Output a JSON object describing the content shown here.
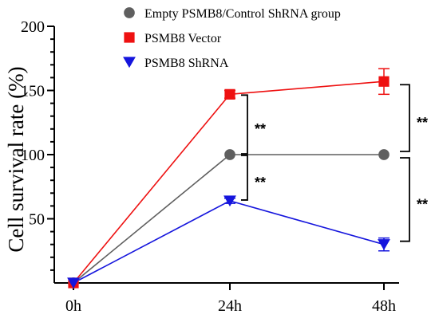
{
  "chart_data": {
    "type": "line",
    "ylabel": "Cell survival rate (%)",
    "xlabel": "",
    "x": [
      "0h",
      "24h",
      "48h"
    ],
    "ylim": [
      0,
      200
    ],
    "yticks": [
      50,
      100,
      150,
      200
    ],
    "yticks_labeled": [
      "50",
      "100",
      "150",
      "200"
    ],
    "grid": false,
    "legend_position": "top-right",
    "series": [
      {
        "name": "Empty PSMB8/Control ShRNA group",
        "color": "#5f5f5f",
        "marker": "circle",
        "values": [
          0,
          100,
          100
        ],
        "errors": [
          0,
          0,
          0
        ]
      },
      {
        "name": "PSMB8 Vector",
        "color": "#ee1111",
        "marker": "square",
        "values": [
          0,
          147,
          157
        ],
        "errors": [
          0,
          3,
          10
        ]
      },
      {
        "name": "PSMB8 ShRNA",
        "color": "#1515dd",
        "marker": "triangle-down",
        "values": [
          0,
          64,
          30
        ],
        "errors": [
          0,
          2,
          5
        ]
      }
    ],
    "significance": [
      {
        "x": "24h",
        "from": 147,
        "to": 100,
        "label": "**"
      },
      {
        "x": "24h",
        "from": 100,
        "to": 64,
        "label": "**"
      },
      {
        "x": "48h",
        "from": 157,
        "to": 100,
        "label": "**"
      },
      {
        "x": "48h",
        "from": 100,
        "to": 30,
        "label": "**"
      }
    ]
  }
}
